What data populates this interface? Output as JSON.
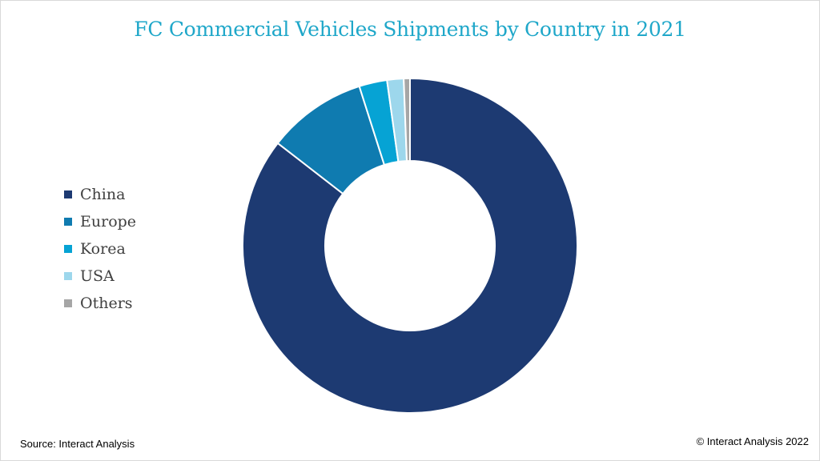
{
  "colors": {
    "title": "#1fa7c9",
    "china": "#1d3a72",
    "europe": "#0f7bb0",
    "korea": "#06a3d4",
    "usa": "#9dd7ec",
    "others": "#a6a6a6"
  },
  "footer": {
    "source": "Source: Interact Analysis",
    "copyright": "© Interact Analysis 2022"
  },
  "chart_data": {
    "type": "pie",
    "subtype": "donut",
    "title": "FC Commercial Vehicles Shipments by Country in 2021",
    "legend_position": "left",
    "categories": [
      "China",
      "Europe",
      "Korea",
      "USA",
      "Others"
    ],
    "values": [
      85.5,
      9.6,
      2.7,
      1.6,
      0.6
    ],
    "unit": "%"
  }
}
